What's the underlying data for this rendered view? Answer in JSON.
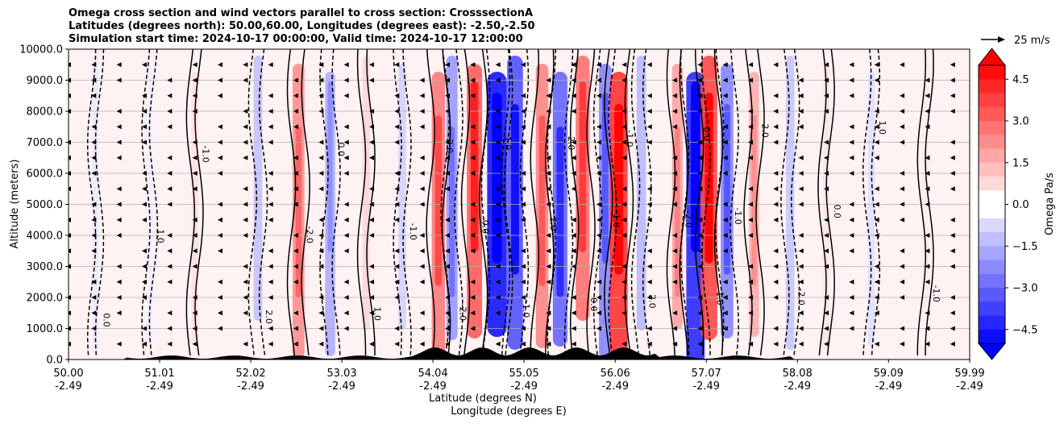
{
  "chart_data": {
    "type": "heatmap",
    "title_lines": [
      "Omega cross section and wind vectors parallel to cross section: CrosssectionA",
      "Latitudes (degrees north): 50.00,60.00, Longitudes (degrees east): -2.50,-2.50",
      "Simulation start time: 2024-10-17 00:00:00, Valid time: 2024-10-17 12:00:00"
    ],
    "ylabel": "Altitude (meters)",
    "xlabel_lat": "Latitude (degrees N)",
    "xlabel_lon": "Longitude (degrees E)",
    "xlim": [
      50.0,
      59.99
    ],
    "ylim": [
      0,
      10000
    ],
    "grid_y": true,
    "x_ticks": [
      {
        "lat": "50.00",
        "lon": "-2.49"
      },
      {
        "lat": "51.01",
        "lon": "-2.49"
      },
      {
        "lat": "52.02",
        "lon": "-2.49"
      },
      {
        "lat": "53.03",
        "lon": "-2.49"
      },
      {
        "lat": "54.04",
        "lon": "-2.49"
      },
      {
        "lat": "55.05",
        "lon": "-2.49"
      },
      {
        "lat": "56.06",
        "lon": "-2.49"
      },
      {
        "lat": "57.07",
        "lon": "-2.49"
      },
      {
        "lat": "58.08",
        "lon": "-2.49"
      },
      {
        "lat": "59.09",
        "lon": "-2.49"
      },
      {
        "lat": "59.99",
        "lon": "-2.49"
      }
    ],
    "y_ticks": [
      "0.0",
      "1000.0",
      "2000.0",
      "3000.0",
      "4000.0",
      "5000.0",
      "6000.0",
      "7000.0",
      "8000.0",
      "9000.0",
      "10000.0"
    ],
    "colorbar": {
      "label": "Omega Pa/s",
      "range": [
        -5.0,
        5.0
      ],
      "extend": "both",
      "ticks": [
        "4.5",
        "3.0",
        "1.5",
        "0.0",
        "−1.5",
        "−3.0",
        "−4.5"
      ],
      "colors": {
        "negative": "#0000ff",
        "positive": "#ff0000",
        "neutral": "#ffffff"
      }
    },
    "quiver_key": {
      "label": "25 m/s",
      "value": 25
    },
    "features": [
      {
        "lat": 50.3,
        "omega": -0.4
      },
      {
        "lat": 50.9,
        "omega": -0.3
      },
      {
        "lat": 51.4,
        "omega": 0.6
      },
      {
        "lat": 52.1,
        "omega": -1.2
      },
      {
        "lat": 52.55,
        "omega": 2.2
      },
      {
        "lat": 52.9,
        "omega": -1.6
      },
      {
        "lat": 53.3,
        "omega": 0.8
      },
      {
        "lat": 53.7,
        "omega": -0.9
      },
      {
        "lat": 54.1,
        "omega": 2.6
      },
      {
        "lat": 54.25,
        "omega": -2.0
      },
      {
        "lat": 54.5,
        "omega": 3.2
      },
      {
        "lat": 54.75,
        "omega": -4.6
      },
      {
        "lat": 54.95,
        "omega": -3.4
      },
      {
        "lat": 55.25,
        "omega": 2.4
      },
      {
        "lat": 55.45,
        "omega": -3.0
      },
      {
        "lat": 55.7,
        "omega": 2.8
      },
      {
        "lat": 55.95,
        "omega": -2.4
      },
      {
        "lat": 56.1,
        "omega": 4.0
      },
      {
        "lat": 56.35,
        "omega": -1.4
      },
      {
        "lat": 56.75,
        "omega": 1.8
      },
      {
        "lat": 56.95,
        "omega": -4.2
      },
      {
        "lat": 57.1,
        "omega": 3.6
      },
      {
        "lat": 57.3,
        "omega": -2.4
      },
      {
        "lat": 57.6,
        "omega": 1.6
      },
      {
        "lat": 58.0,
        "omega": -1.1
      },
      {
        "lat": 58.4,
        "omega": 0.5
      },
      {
        "lat": 58.9,
        "omega": -0.6
      },
      {
        "lat": 59.5,
        "omega": 0.4
      }
    ],
    "contour_labels": [
      "0.0",
      "1.0",
      "-1.0",
      "2.0",
      "-2.0"
    ]
  }
}
